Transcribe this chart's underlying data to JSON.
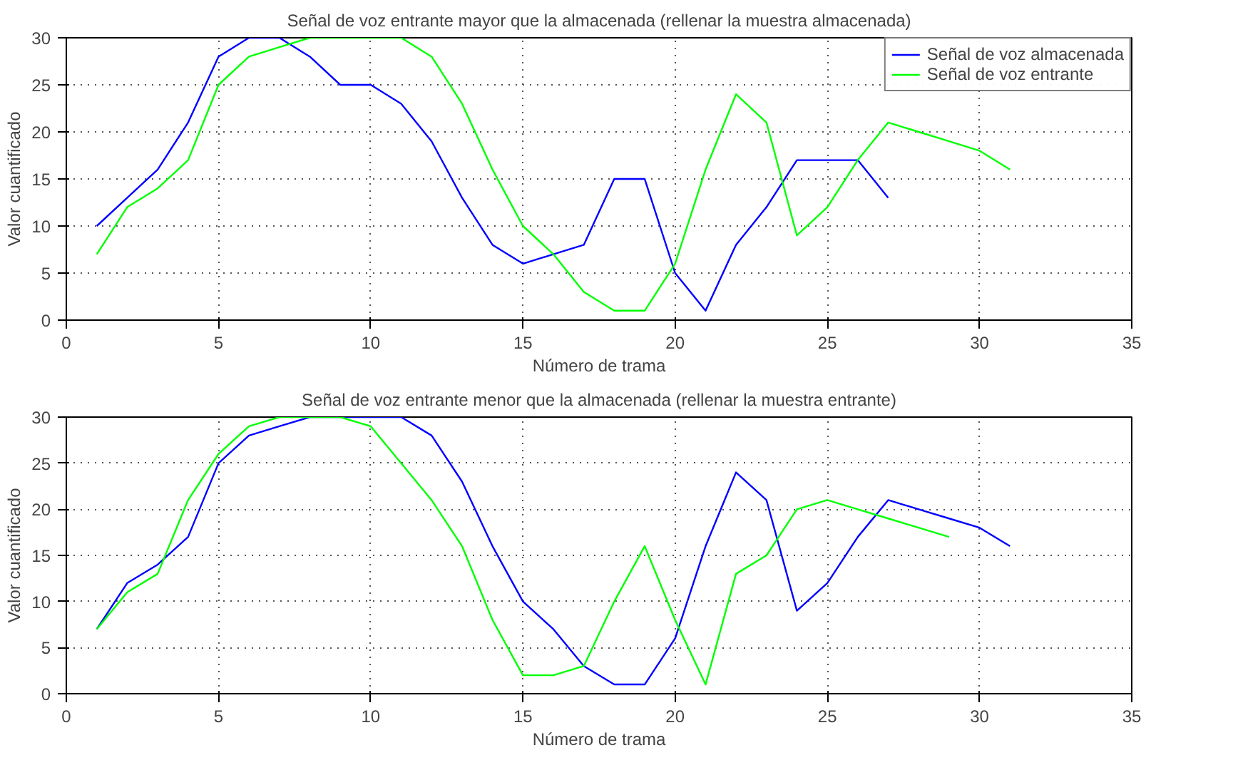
{
  "chart_data": [
    {
      "type": "line",
      "title": "Señal de voz entrante mayor que la almacenada (rellenar la muestra almacenada)",
      "xlabel": "Número de trama",
      "ylabel": "Valor cuantificado",
      "xlim": [
        0,
        35
      ],
      "xticks": [
        0,
        5,
        10,
        15,
        20,
        25,
        30,
        35
      ],
      "ylim": [
        0,
        30
      ],
      "yticks": [
        0,
        5,
        10,
        15,
        20,
        25,
        30
      ],
      "grid": true,
      "legend": "top right",
      "line_style": "solid",
      "series": [
        {
          "name": "Señal de voz almacenada",
          "color": "#0000ff",
          "x": [
            1,
            2,
            3,
            4,
            5,
            6,
            7,
            8,
            9,
            10,
            11,
            12,
            13,
            14,
            15,
            16,
            17,
            18,
            19,
            20,
            21,
            22,
            23,
            24,
            25,
            26,
            27
          ],
          "values": [
            10,
            13,
            16,
            21,
            28,
            30,
            30,
            28,
            25,
            25,
            23,
            19,
            13,
            8,
            6,
            7,
            8,
            15,
            15,
            5,
            1,
            8,
            12,
            17,
            17,
            17,
            13
          ]
        },
        {
          "name": "Señal de voz entrante",
          "color": "#00ff00",
          "x": [
            1,
            2,
            3,
            4,
            5,
            6,
            7,
            8,
            9,
            10,
            11,
            12,
            13,
            14,
            15,
            16,
            17,
            18,
            19,
            20,
            21,
            22,
            23,
            24,
            25,
            26,
            27,
            28,
            29,
            30,
            31
          ],
          "values": [
            7,
            12,
            14,
            17,
            25,
            28,
            29,
            30,
            30,
            30,
            30,
            28,
            23,
            16,
            10,
            7,
            3,
            1,
            1,
            6,
            16,
            24,
            21,
            9,
            12,
            17,
            21,
            20,
            19,
            18,
            16
          ]
        }
      ]
    },
    {
      "type": "line",
      "title": "Señal de voz entrante menor que la almacenada (rellenar la muestra entrante)",
      "xlabel": "Número de trama",
      "ylabel": "Valor cuantificado",
      "xlim": [
        0,
        35
      ],
      "xticks": [
        0,
        5,
        10,
        15,
        20,
        25,
        30,
        35
      ],
      "ylim": [
        0,
        30
      ],
      "yticks": [
        0,
        5,
        10,
        15,
        20,
        25,
        30
      ],
      "grid": true,
      "line_style": "solid",
      "series": [
        {
          "color": "#0000ff",
          "x": [
            1,
            2,
            3,
            4,
            5,
            6,
            7,
            8,
            9,
            10,
            11,
            12,
            13,
            14,
            15,
            16,
            17,
            18,
            19,
            20,
            21,
            22,
            23,
            24,
            25,
            26,
            27,
            28,
            29,
            30,
            31
          ],
          "values": [
            7,
            12,
            14,
            17,
            25,
            28,
            29,
            30,
            30,
            30,
            30,
            28,
            23,
            16,
            10,
            7,
            3,
            1,
            1,
            6,
            16,
            24,
            21,
            9,
            12,
            17,
            21,
            20,
            19,
            18,
            16
          ]
        },
        {
          "color": "#00ff00",
          "x": [
            1,
            2,
            3,
            4,
            5,
            6,
            7,
            8,
            9,
            10,
            11,
            12,
            13,
            14,
            15,
            16,
            17,
            18,
            19,
            20,
            21,
            22,
            23,
            24,
            25,
            26,
            27,
            28,
            29
          ],
          "values": [
            7,
            11,
            13,
            21,
            26,
            29,
            30,
            30,
            30,
            29,
            25,
            21,
            16,
            8,
            2,
            2,
            3,
            10,
            16,
            8,
            1,
            13,
            15,
            20,
            21,
            20,
            19,
            18,
            17
          ]
        }
      ]
    }
  ]
}
